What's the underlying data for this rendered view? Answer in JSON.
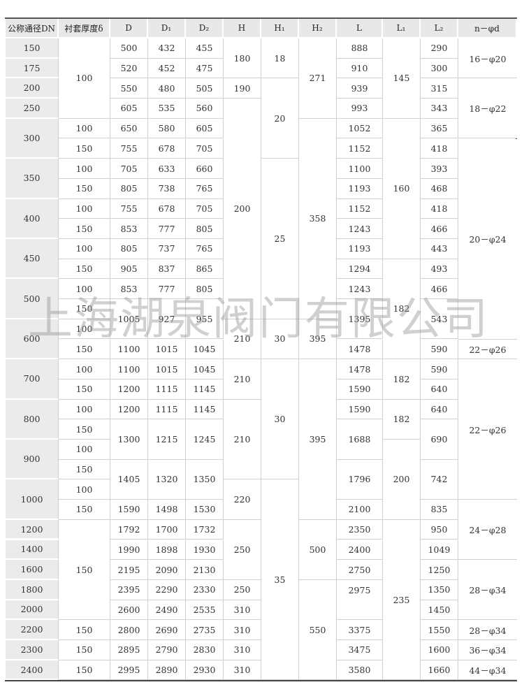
{
  "watermark": "上海湖泉阀门有限公司",
  "table": {
    "columns": [
      {
        "key": "dn",
        "header": "公称通径DN",
        "cells": [
          "150",
          "175",
          "200",
          "250",
          "300",
          "350",
          "400",
          "450",
          "500",
          "600",
          "700",
          "800",
          "900",
          "1000",
          "1200",
          "1400",
          "1600",
          "1800",
          "2000",
          "2200",
          "2300",
          "2400"
        ]
      },
      {
        "key": "delta",
        "header": "衬套厚度δ",
        "cells": [
          "100",
          "100",
          "150",
          "100",
          "150",
          "100",
          "150",
          "100",
          "150",
          "100",
          "150",
          "100",
          "150",
          "100",
          "150",
          "100",
          "150",
          "100",
          "150",
          "100",
          "150",
          "150",
          "150",
          "150",
          "150"
        ]
      },
      {
        "key": "D",
        "header": "D",
        "cells": [
          "500",
          "520",
          "550",
          "605",
          "650",
          "755",
          "705",
          "805",
          "755",
          "853",
          "805",
          "905",
          "853",
          "1005",
          "1100",
          "1100",
          "1200",
          "1200",
          "1300",
          "1405",
          "1590",
          "1792",
          "1990",
          "2195",
          "2395",
          "2600",
          "2800",
          "2895",
          "2995"
        ]
      },
      {
        "key": "D1",
        "header": "D₁",
        "cells": [
          "432",
          "452",
          "480",
          "535",
          "580",
          "678",
          "633",
          "738",
          "678",
          "777",
          "737",
          "837",
          "777",
          "927",
          "1015",
          "1015",
          "1115",
          "1115",
          "1215",
          "1320",
          "1498",
          "1700",
          "1898",
          "2090",
          "2290",
          "2490",
          "2690",
          "2790",
          "2890"
        ]
      },
      {
        "key": "D2",
        "header": "D₂",
        "cells": [
          "455",
          "475",
          "505",
          "560",
          "605",
          "705",
          "660",
          "765",
          "705",
          "805",
          "765",
          "865",
          "805",
          "955",
          "1045",
          "1045",
          "1145",
          "1145",
          "1245",
          "1350",
          "1530",
          "1732",
          "1930",
          "2130",
          "2330",
          "2535",
          "2735",
          "2830",
          "2930"
        ]
      },
      {
        "key": "H",
        "header": "H",
        "cells": [
          "180",
          "190",
          "200",
          "210",
          "210",
          "210",
          "220",
          "250",
          "250",
          "310",
          "310",
          "310",
          "310"
        ]
      },
      {
        "key": "H1",
        "header": "H₁",
        "cells": [
          "18",
          "20",
          "25",
          "30",
          "30",
          "35"
        ]
      },
      {
        "key": "H2",
        "header": "H₂",
        "cells": [
          "271",
          "358",
          "395",
          "395",
          "500",
          "550"
        ]
      },
      {
        "key": "L",
        "header": "L",
        "cells": [
          "888",
          "910",
          "939",
          "993",
          "1052",
          "1152",
          "1100",
          "1193",
          "1152",
          "1243",
          "1193",
          "1294",
          "1243",
          "1395",
          "1478",
          "1478",
          "1590",
          "1590",
          "1688",
          "1796",
          "2100",
          "2350",
          "2400",
          "2750",
          "2975",
          "",
          "3375",
          "3475",
          "3580"
        ]
      },
      {
        "key": "L1",
        "header": "L₁",
        "cells": [
          "145",
          "160",
          "182",
          "182",
          "182",
          "200",
          "235"
        ]
      },
      {
        "key": "L2",
        "header": "L₂",
        "cells": [
          "290",
          "300",
          "315",
          "343",
          "365",
          "418",
          "393",
          "468",
          "418",
          "466",
          "443",
          "493",
          "466",
          "543",
          "590",
          "590",
          "640",
          "640",
          "690",
          "742",
          "835",
          "950",
          "1049",
          "1250",
          "1350",
          "1450",
          "1550",
          "1600",
          "1660"
        ]
      },
      {
        "key": "nd",
        "header": "n－φd",
        "cells": [
          "16－φ20",
          "18－φ22",
          "20－φ24",
          "22－φ26",
          "22－φ26",
          "24－φ28",
          "28－φ34",
          "28－φ34",
          "36－φ34",
          "44－φ34"
        ]
      }
    ]
  }
}
